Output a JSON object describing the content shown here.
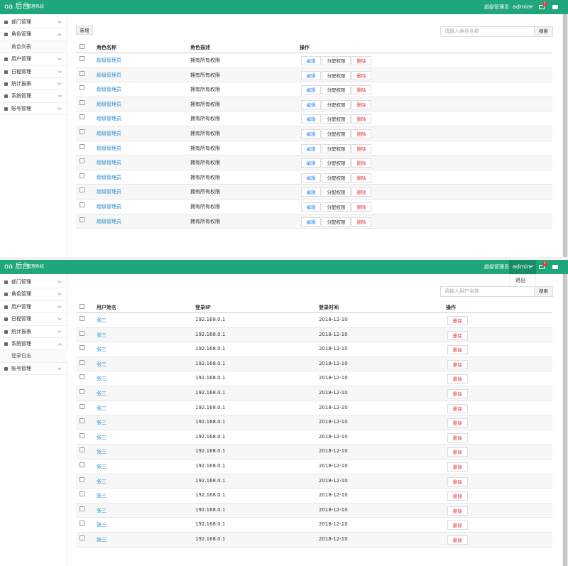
{
  "screens": [
    {
      "header": {
        "logo": "oa 后台",
        "subtitle": "管理系统",
        "user_role": "超级管理员",
        "user_name": "admin",
        "badge": "1"
      },
      "sidebar": [
        {
          "label": "部门管理"
        },
        {
          "label": "角色管理",
          "children": [
            "角色列表"
          ]
        },
        {
          "label": "用户管理"
        },
        {
          "label": "日程管理"
        },
        {
          "label": "统计报表"
        },
        {
          "label": "系统管理"
        },
        {
          "label": "账号管理"
        }
      ],
      "toolbar": {
        "add": "新增",
        "search_placeholder": "请输入角色名称",
        "search_button": "搜索"
      },
      "table": {
        "columns": [
          "角色名称",
          "角色描述",
          "操作"
        ],
        "rows": [
          {
            "cells": [
              "超级管理员",
              "拥有所有权限"
            ],
            "actions": [
              "编辑",
              "分配权限",
              "删除"
            ]
          },
          {
            "cells": [
              "超级管理员",
              "拥有所有权限"
            ],
            "actions": [
              "编辑",
              "分配权限",
              "删除"
            ]
          },
          {
            "cells": [
              "超级管理员",
              "拥有所有权限"
            ],
            "actions": [
              "编辑",
              "分配权限",
              "删除"
            ]
          },
          {
            "cells": [
              "超级管理员",
              "拥有所有权限"
            ],
            "actions": [
              "编辑",
              "分配权限",
              "删除"
            ]
          },
          {
            "cells": [
              "超级管理员",
              "拥有所有权限"
            ],
            "actions": [
              "编辑",
              "分配权限",
              "删除"
            ]
          },
          {
            "cells": [
              "超级管理员",
              "拥有所有权限"
            ],
            "actions": [
              "编辑",
              "分配权限",
              "删除"
            ]
          },
          {
            "cells": [
              "超级管理员",
              "拥有所有权限"
            ],
            "actions": [
              "编辑",
              "分配权限",
              "删除"
            ]
          },
          {
            "cells": [
              "超级管理员",
              "拥有所有权限"
            ],
            "actions": [
              "编辑",
              "分配权限",
              "删除"
            ]
          },
          {
            "cells": [
              "超级管理员",
              "拥有所有权限"
            ],
            "actions": [
              "编辑",
              "分配权限",
              "删除"
            ]
          },
          {
            "cells": [
              "超级管理员",
              "拥有所有权限"
            ],
            "actions": [
              "编辑",
              "分配权限",
              "删除"
            ]
          },
          {
            "cells": [
              "超级管理员",
              "拥有所有权限"
            ],
            "actions": [
              "编辑",
              "分配权限",
              "删除"
            ]
          },
          {
            "cells": [
              "超级管理员",
              "拥有所有权限"
            ],
            "actions": [
              "编辑",
              "分配权限",
              "删除"
            ]
          }
        ]
      }
    },
    {
      "header": {
        "logo": "oa 后台",
        "subtitle": "管理系统",
        "user_role": "超级管理员",
        "user_name": "admin",
        "badge": "1",
        "menu": [
          "退出"
        ]
      },
      "sidebar": [
        {
          "label": "部门管理"
        },
        {
          "label": "角色管理"
        },
        {
          "label": "用户管理"
        },
        {
          "label": "日程管理"
        },
        {
          "label": "统计报表"
        },
        {
          "label": "系统管理",
          "children": [
            "登录日志"
          ]
        },
        {
          "label": "账号管理"
        }
      ],
      "toolbar": {
        "search_placeholder": "请输入用户名称",
        "search_button": "搜索"
      },
      "table": {
        "columns": [
          "用户姓名",
          "登录IP",
          "登录时间",
          "操作"
        ],
        "rows": [
          {
            "cells": [
              "张三",
              "192.168.0.1",
              "2018-12-10"
            ],
            "actions": [
              "删除"
            ]
          },
          {
            "cells": [
              "张三",
              "192.168.0.1",
              "2018-12-10"
            ],
            "actions": [
              "删除"
            ]
          },
          {
            "cells": [
              "张三",
              "192.168.0.1",
              "2018-12-10"
            ],
            "actions": [
              "删除"
            ]
          },
          {
            "cells": [
              "张三",
              "192.168.0.1",
              "2018-12-10"
            ],
            "actions": [
              "删除"
            ]
          },
          {
            "cells": [
              "张三",
              "192.168.0.1",
              "2018-12-10"
            ],
            "actions": [
              "删除"
            ]
          },
          {
            "cells": [
              "张三",
              "192.168.0.1",
              "2018-12-10"
            ],
            "actions": [
              "删除"
            ]
          },
          {
            "cells": [
              "张三",
              "192.168.0.1",
              "2018-12-10"
            ],
            "actions": [
              "删除"
            ]
          },
          {
            "cells": [
              "张三",
              "192.168.0.1",
              "2018-12-10"
            ],
            "actions": [
              "删除"
            ]
          },
          {
            "cells": [
              "张三",
              "192.168.0.1",
              "2018-12-10"
            ],
            "actions": [
              "删除"
            ]
          },
          {
            "cells": [
              "张三",
              "192.168.0.1",
              "2018-12-10"
            ],
            "actions": [
              "删除"
            ]
          },
          {
            "cells": [
              "张三",
              "192.168.0.1",
              "2018-12-10"
            ],
            "actions": [
              "删除"
            ]
          },
          {
            "cells": [
              "张三",
              "192.168.0.1",
              "2018-12-10"
            ],
            "actions": [
              "删除"
            ]
          },
          {
            "cells": [
              "张三",
              "192.168.0.1",
              "2018-12-10"
            ],
            "actions": [
              "删除"
            ]
          },
          {
            "cells": [
              "张三",
              "192.168.0.1",
              "2018-12-10"
            ],
            "actions": [
              "删除"
            ]
          },
          {
            "cells": [
              "张三",
              "192.168.0.1",
              "2018-12-10"
            ],
            "actions": [
              "删除"
            ]
          },
          {
            "cells": [
              "张三",
              "192.168.0.1",
              "2018-12-10"
            ],
            "actions": [
              "删除"
            ]
          }
        ]
      }
    }
  ]
}
